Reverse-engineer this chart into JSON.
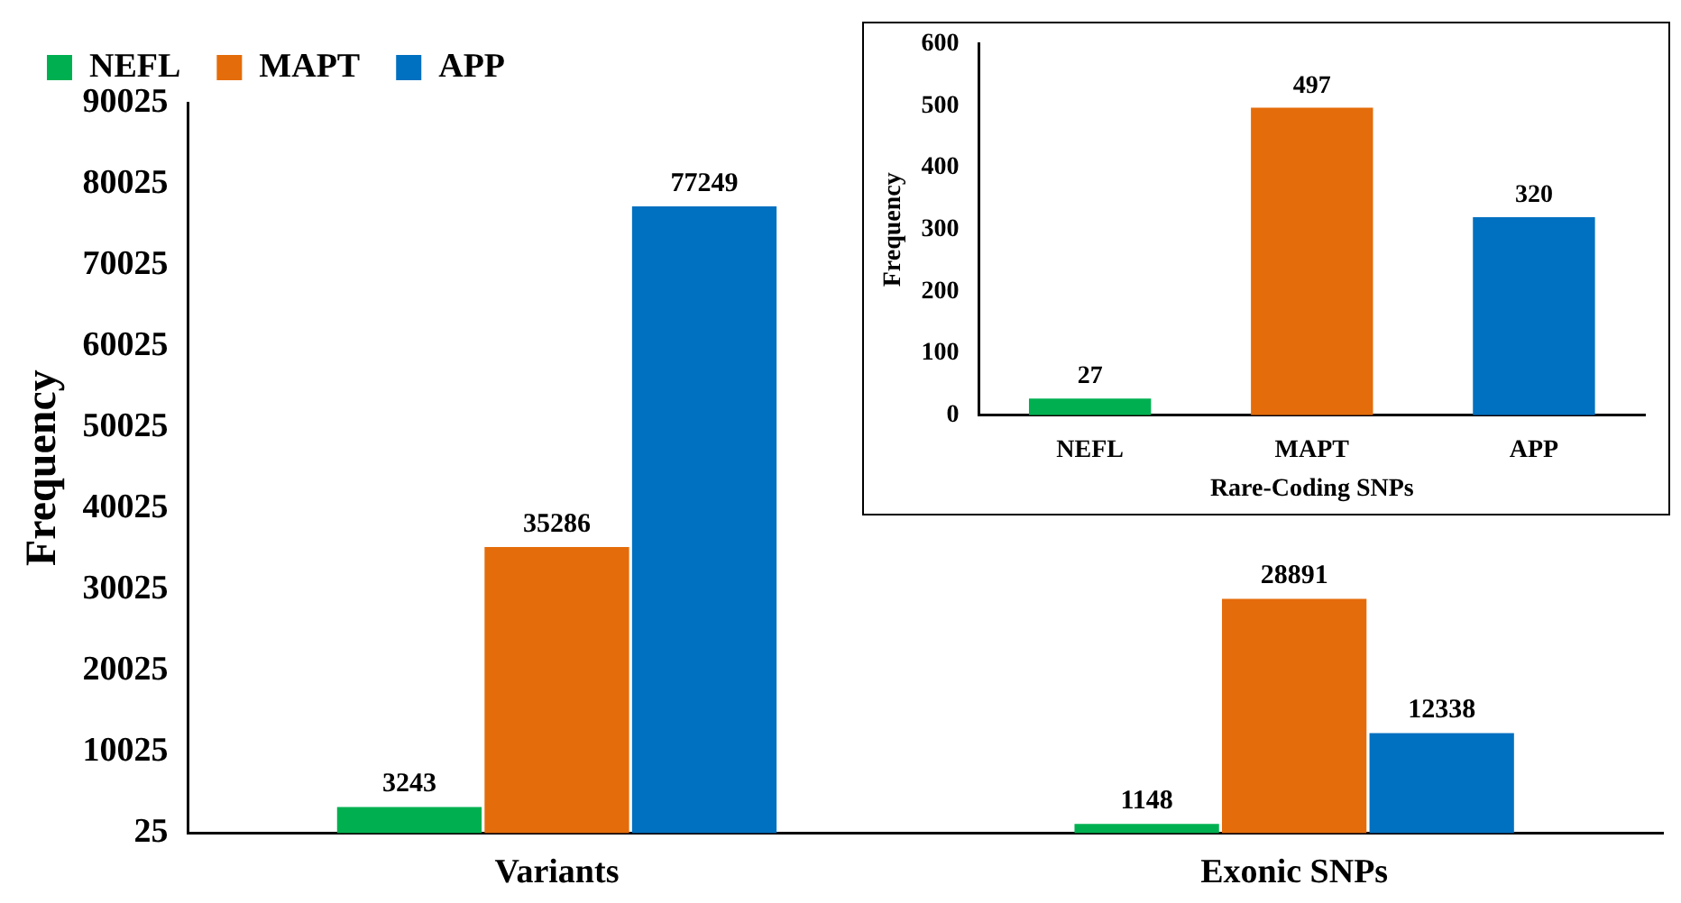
{
  "chart_data": [
    {
      "type": "bar",
      "ylabel": "Frequency",
      "categories": [
        "Variants",
        "Exonic SNPs"
      ],
      "series": [
        {
          "name": "NEFL",
          "color": "#00b050",
          "values": [
            3243,
            1148
          ]
        },
        {
          "name": "MAPT",
          "color": "#e46c0a",
          "values": [
            35286,
            28891
          ]
        },
        {
          "name": "APP",
          "color": "#0070c0",
          "values": [
            77249,
            12338
          ]
        }
      ],
      "ylim": [
        25,
        90025
      ],
      "yticks": [
        25,
        10025,
        20025,
        30025,
        40025,
        50025,
        60025,
        70025,
        80025,
        90025
      ],
      "grid": false,
      "legend": "top left",
      "data_labels": true
    },
    {
      "type": "bar",
      "xlabel": "Rare-Coding SNPs",
      "ylabel": "Frequency",
      "categories": [
        "NEFL",
        "MAPT",
        "APP"
      ],
      "values": [
        27,
        497,
        320
      ],
      "colors": [
        "#00b050",
        "#e46c0a",
        "#0070c0"
      ],
      "ylim": [
        0,
        600
      ],
      "yticks": [
        0,
        100,
        200,
        300,
        400,
        500,
        600
      ],
      "grid": false,
      "data_labels": true
    }
  ]
}
